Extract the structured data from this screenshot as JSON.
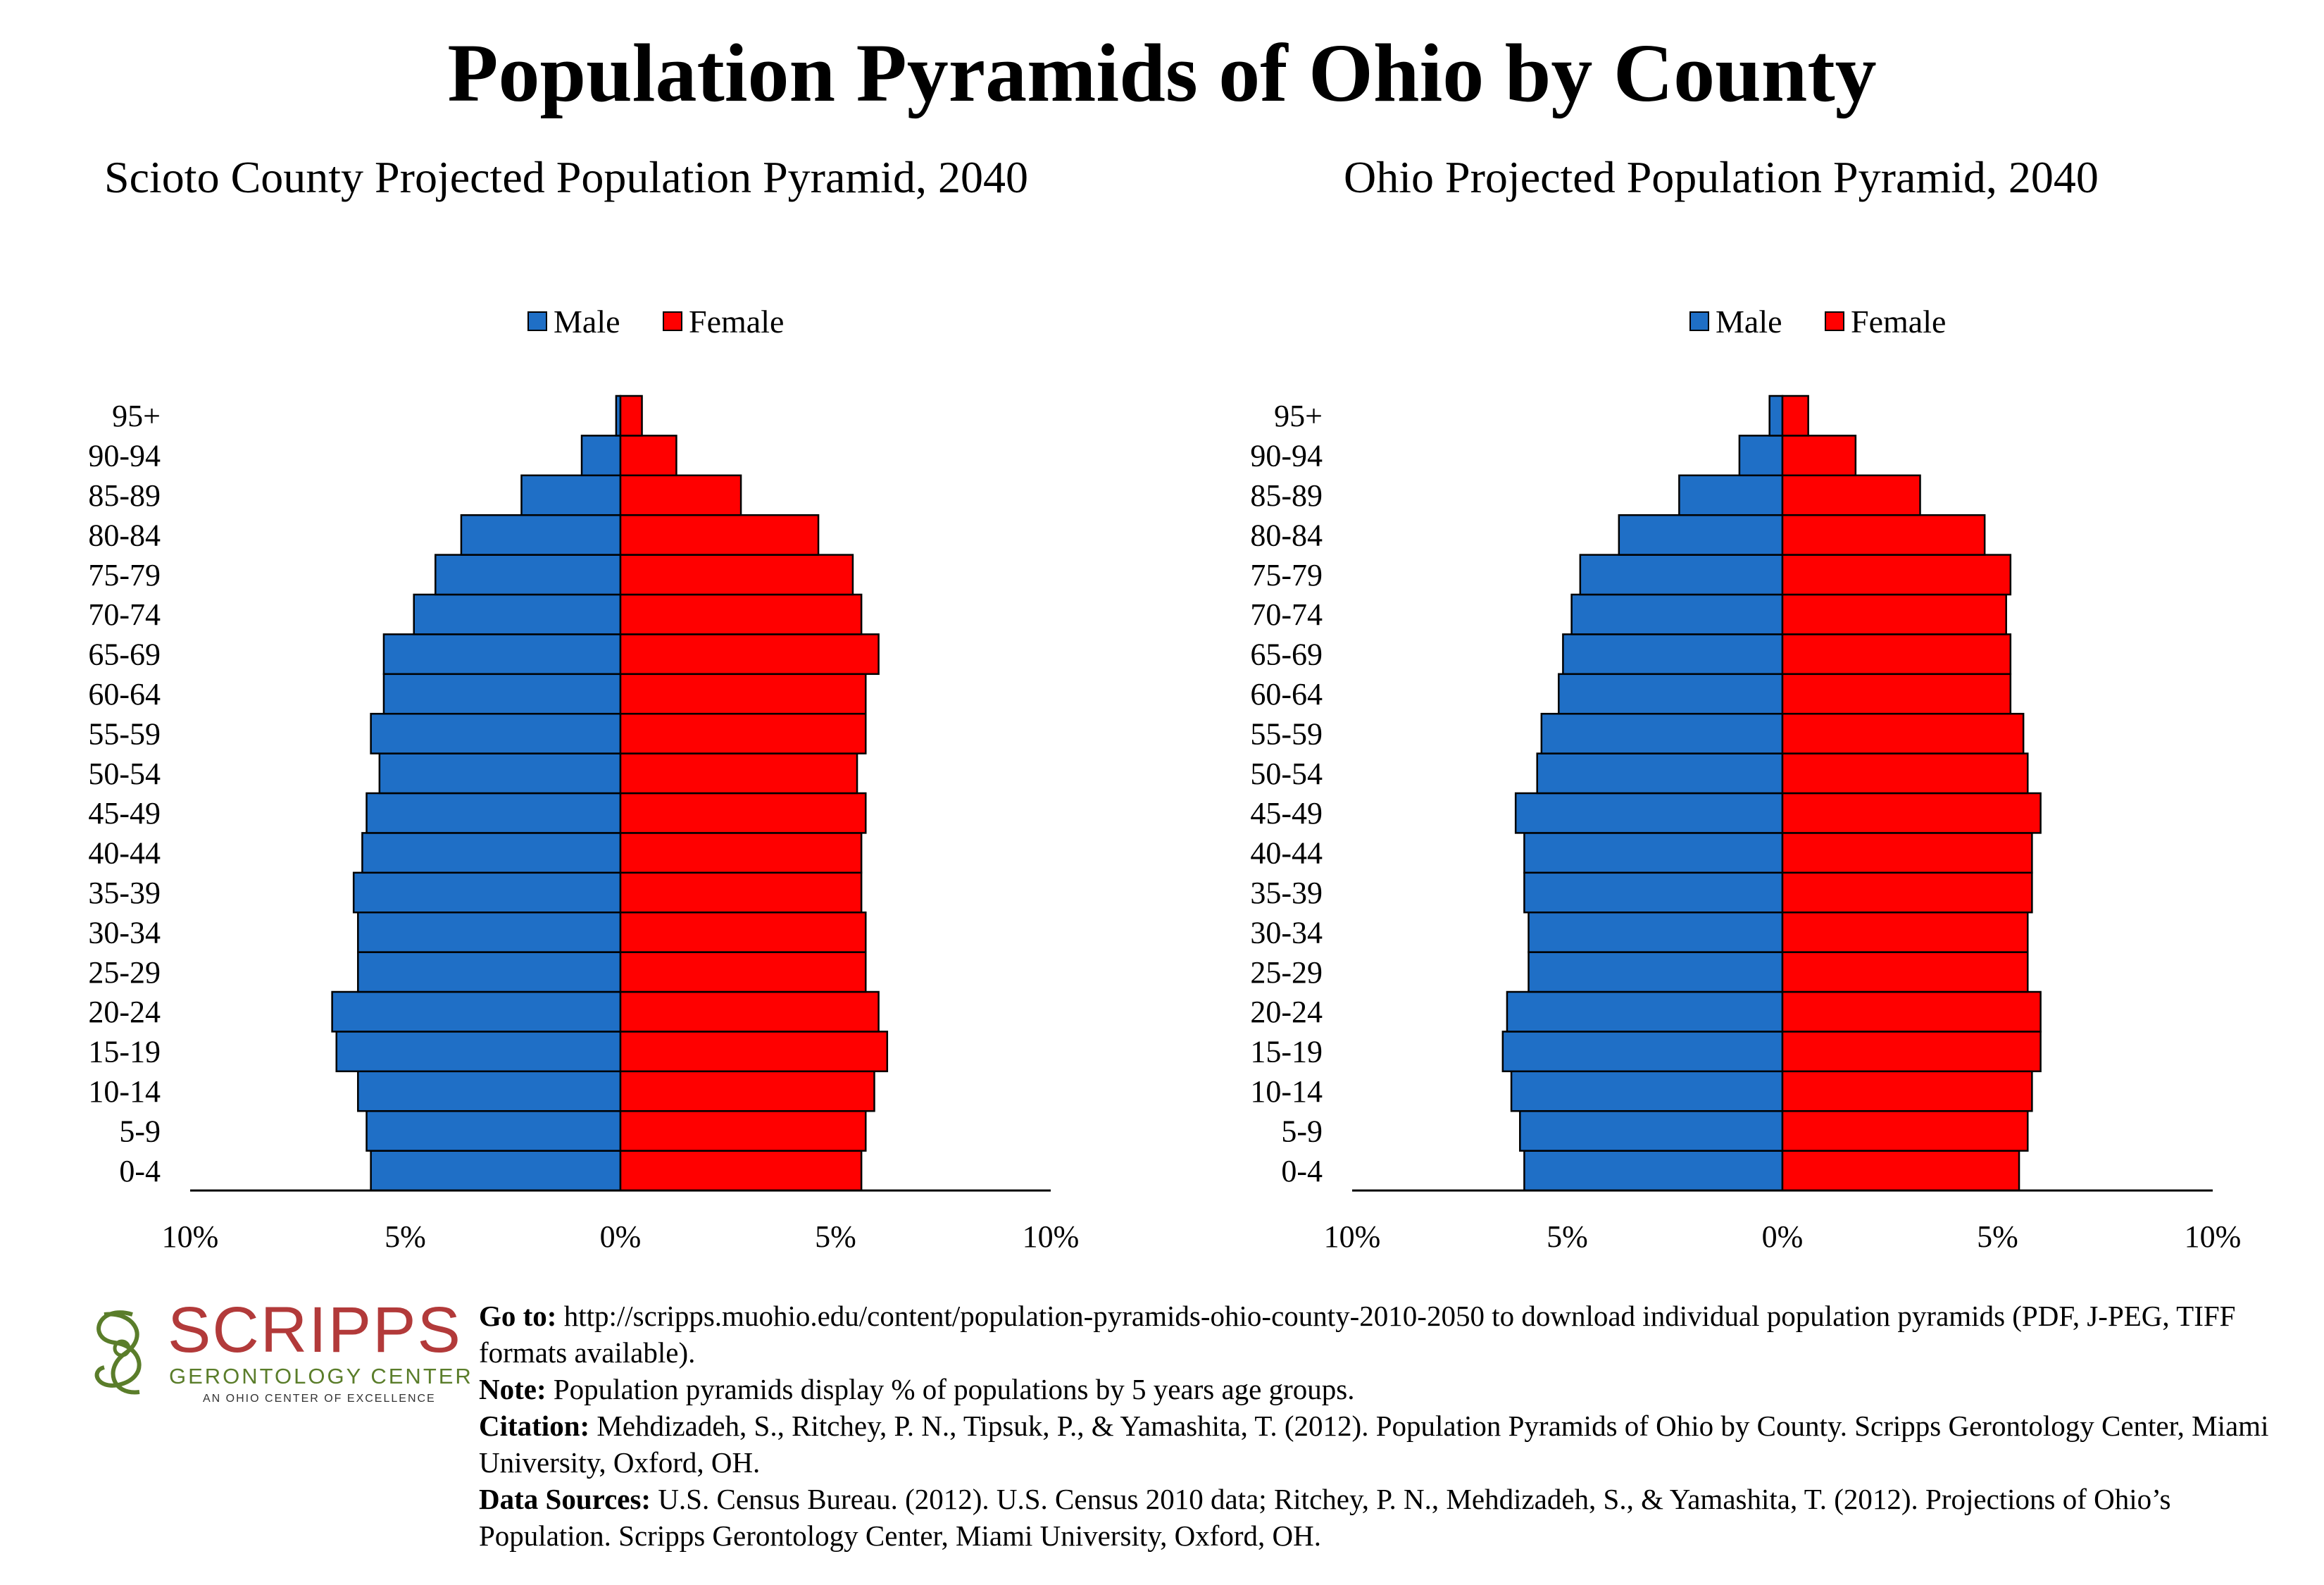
{
  "title": "Population Pyramids of Ohio by County",
  "legend": {
    "male": "Male",
    "female": "Female"
  },
  "colors": {
    "male": "#1f6fc6",
    "female": "#ff0000",
    "outline": "#000000"
  },
  "chart_data": [
    {
      "type": "bar",
      "orientation": "horizontal-pyramid",
      "title": "Scioto County Projected Population Pyramid, 2040",
      "categories": [
        "0-4",
        "5-9",
        "10-14",
        "15-19",
        "20-24",
        "25-29",
        "30-34",
        "35-39",
        "40-44",
        "45-49",
        "50-54",
        "55-59",
        "60-64",
        "65-69",
        "70-74",
        "75-79",
        "80-84",
        "85-89",
        "90-94",
        "95+"
      ],
      "series": [
        {
          "name": "Male",
          "values": [
            5.8,
            5.9,
            6.1,
            6.6,
            6.7,
            6.1,
            6.1,
            6.2,
            6.0,
            5.9,
            5.6,
            5.8,
            5.5,
            5.5,
            4.8,
            4.3,
            3.7,
            2.3,
            0.9,
            0.1
          ]
        },
        {
          "name": "Female",
          "values": [
            5.6,
            5.7,
            5.9,
            6.2,
            6.0,
            5.7,
            5.7,
            5.6,
            5.6,
            5.7,
            5.5,
            5.7,
            5.7,
            6.0,
            5.6,
            5.4,
            4.6,
            2.8,
            1.3,
            0.5
          ]
        }
      ],
      "xlim": [
        -10,
        10
      ],
      "xticks": [
        "10%",
        "5%",
        "0%",
        "5%",
        "10%"
      ],
      "legend_position": "top-center"
    },
    {
      "type": "bar",
      "orientation": "horizontal-pyramid",
      "title": "Ohio Projected Population Pyramid, 2040",
      "categories": [
        "0-4",
        "5-9",
        "10-14",
        "15-19",
        "20-24",
        "25-29",
        "30-34",
        "35-39",
        "40-44",
        "45-49",
        "50-54",
        "55-59",
        "60-64",
        "65-69",
        "70-74",
        "75-79",
        "80-84",
        "85-89",
        "90-94",
        "95+"
      ],
      "series": [
        {
          "name": "Male",
          "values": [
            6.0,
            6.1,
            6.3,
            6.5,
            6.4,
            5.9,
            5.9,
            6.0,
            6.0,
            6.2,
            5.7,
            5.6,
            5.2,
            5.1,
            4.9,
            4.7,
            3.8,
            2.4,
            1.0,
            0.3
          ]
        },
        {
          "name": "Female",
          "values": [
            5.5,
            5.7,
            5.8,
            6.0,
            6.0,
            5.7,
            5.7,
            5.8,
            5.8,
            6.0,
            5.7,
            5.6,
            5.3,
            5.3,
            5.2,
            5.3,
            4.7,
            3.2,
            1.7,
            0.6
          ]
        }
      ],
      "xlim": [
        -10,
        10
      ],
      "xticks": [
        "10%",
        "5%",
        "0%",
        "5%",
        "10%"
      ],
      "legend_position": "top-center"
    }
  ],
  "logo": {
    "word": "SCRIPPS",
    "subtitle": "GERONTOLOGY CENTER",
    "tagline": "AN OHIO CENTER OF EXCELLENCE"
  },
  "notes": [
    {
      "label": "Go to:",
      "text": " http://scripps.muohio.edu/content/population-pyramids-ohio-county-2010-2050 to download individual population pyramids (PDF, J-PEG, TIFF formats available)."
    },
    {
      "label": "Note:",
      "text": " Population pyramids display % of populations by 5 years age groups."
    },
    {
      "label": "Citation:",
      "text": " Mehdizadeh, S., Ritchey, P. N., Tipsuk, P., & Yamashita, T. (2012). Population Pyramids of Ohio by County. Scripps Gerontology Center, Miami University, Oxford, OH."
    },
    {
      "label": "Data Sources:",
      "text": " U.S. Census Bureau. (2012). U.S. Census 2010 data; Ritchey, P. N., Mehdizadeh, S., & Yamashita, T. (2012). Projections of Ohio’s Population. Scripps Gerontology Center, Miami University, Oxford, OH."
    }
  ]
}
